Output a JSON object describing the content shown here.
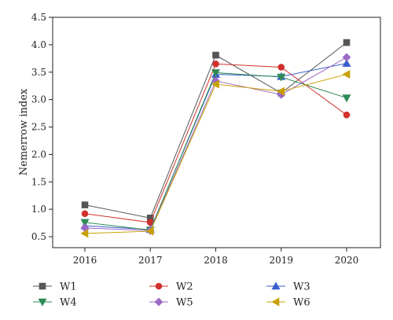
{
  "chart_data": {
    "type": "line",
    "title": "",
    "xlabel": "",
    "ylabel": "Nemerrow index",
    "categories": [
      "2016",
      "2017",
      "2018",
      "2019",
      "2020"
    ],
    "ylim": [
      0.3,
      4.5
    ],
    "yticks": [
      "0.5",
      "1.0",
      "1.5",
      "2.0",
      "2.5",
      "3.0",
      "3.5",
      "4.0",
      "4.5"
    ],
    "grid": false,
    "legend_position": "bottom",
    "series": [
      {
        "name": "W1",
        "color": "#555555",
        "marker": "square",
        "values": [
          1.08,
          0.84,
          3.81,
          3.12,
          4.04
        ]
      },
      {
        "name": "W2",
        "color": "#d0312d",
        "marker": "circle",
        "values": [
          0.92,
          0.76,
          3.65,
          3.59,
          2.72
        ]
      },
      {
        "name": "W3",
        "color": "#3a5fcd",
        "marker": "triangle-up",
        "values": [
          0.7,
          0.63,
          3.46,
          3.42,
          3.66
        ]
      },
      {
        "name": "W4",
        "color": "#2e8b57",
        "marker": "triangle-down",
        "values": [
          0.76,
          0.62,
          3.49,
          3.41,
          3.03
        ]
      },
      {
        "name": "W5",
        "color": "#9c6ac4",
        "marker": "diamond",
        "values": [
          0.66,
          0.61,
          3.34,
          3.09,
          3.77
        ]
      },
      {
        "name": "W6",
        "color": "#c8a000",
        "marker": "triangle-left",
        "values": [
          0.56,
          0.6,
          3.28,
          3.15,
          3.46
        ]
      }
    ]
  }
}
